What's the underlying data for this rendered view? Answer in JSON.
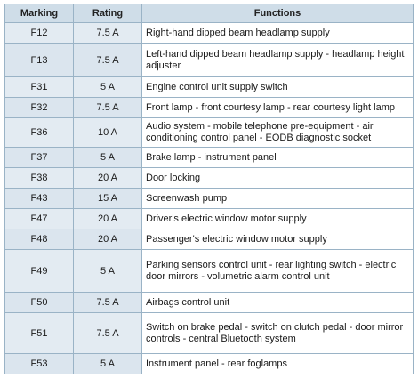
{
  "headers": {
    "marking": "Marking",
    "rating": "Rating",
    "functions": "Functions"
  },
  "rows": [
    {
      "marking": "F12",
      "rating": "7.5 A",
      "function": "Right-hand dipped beam headlamp supply"
    },
    {
      "marking": "F13",
      "rating": "7.5 A",
      "function": "Left-hand dipped beam headlamp supply - headlamp height adjuster"
    },
    {
      "marking": "F31",
      "rating": "5 A",
      "function": "Engine control unit supply switch"
    },
    {
      "marking": "F32",
      "rating": "7.5 A",
      "function": "Front lamp - front courtesy lamp - rear courtesy light lamp"
    },
    {
      "marking": "F36",
      "rating": "10 A",
      "function": "Audio system - mobile telephone pre-equipment - air conditioning control panel - EODB diagnostic socket"
    },
    {
      "marking": "F37",
      "rating": "5 A",
      "function": "Brake lamp - instrument panel"
    },
    {
      "marking": "F38",
      "rating": "20 A",
      "function": "Door locking"
    },
    {
      "marking": "F43",
      "rating": "15 A",
      "function": "Screenwash pump"
    },
    {
      "marking": "F47",
      "rating": "20 A",
      "function": "Driver's electric window motor supply"
    },
    {
      "marking": "F48",
      "rating": "20 A",
      "function": "Passenger's electric window motor supply"
    },
    {
      "marking": "F49",
      "rating": "5 A",
      "function": "Parking sensors control unit - rear lighting switch - electric door mirrors - volumetric alarm control unit"
    },
    {
      "marking": "F50",
      "rating": "7.5 A",
      "function": "Airbags control unit"
    },
    {
      "marking": "F51",
      "rating": "7.5 A",
      "function": "Switch on brake pedal - switch on clutch pedal - door mirror controls - central Bluetooth system"
    },
    {
      "marking": "F53",
      "rating": "5 A",
      "function": "Instrument panel - rear foglamps"
    }
  ]
}
